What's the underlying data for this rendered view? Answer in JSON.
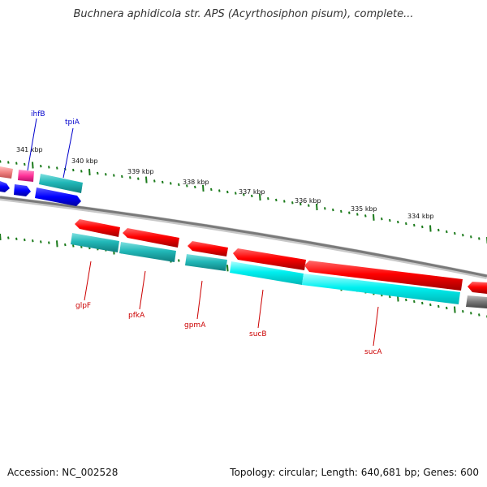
{
  "title": "Buchnera aphidicola str. APS (Acyrthosiphon pisum), complete...",
  "footer": {
    "accession": "Accession: NC_002528",
    "stats": "Topology: circular; Length: 640,681 bp; Genes: 600"
  },
  "scale_ticks": [
    "341 kbp",
    "340 kbp",
    "339 kbp",
    "338 kbp",
    "337 kbp",
    "336 kbp",
    "335 kbp",
    "334 kbp"
  ],
  "genes_forward": [
    {
      "name": "ihfB",
      "color": "#0000cc"
    },
    {
      "name": "tpiA",
      "color": "#0000cc"
    }
  ],
  "genes_reverse": [
    {
      "name": "glpF",
      "color": "#cc0000"
    },
    {
      "name": "pfkA",
      "color": "#cc0000"
    },
    {
      "name": "gpmA",
      "color": "#cc0000"
    },
    {
      "name": "sucB",
      "color": "#cc0000"
    },
    {
      "name": "sucA",
      "color": "#cc0000"
    }
  ],
  "colors": {
    "cds_forward": "#0000ff",
    "cds_reverse": "#ff0000",
    "orf": "#33cccc",
    "orf_bright": "#00ffff",
    "backbone": "#888888",
    "tick": "#1a7a1a",
    "misc": "#ff3399"
  }
}
